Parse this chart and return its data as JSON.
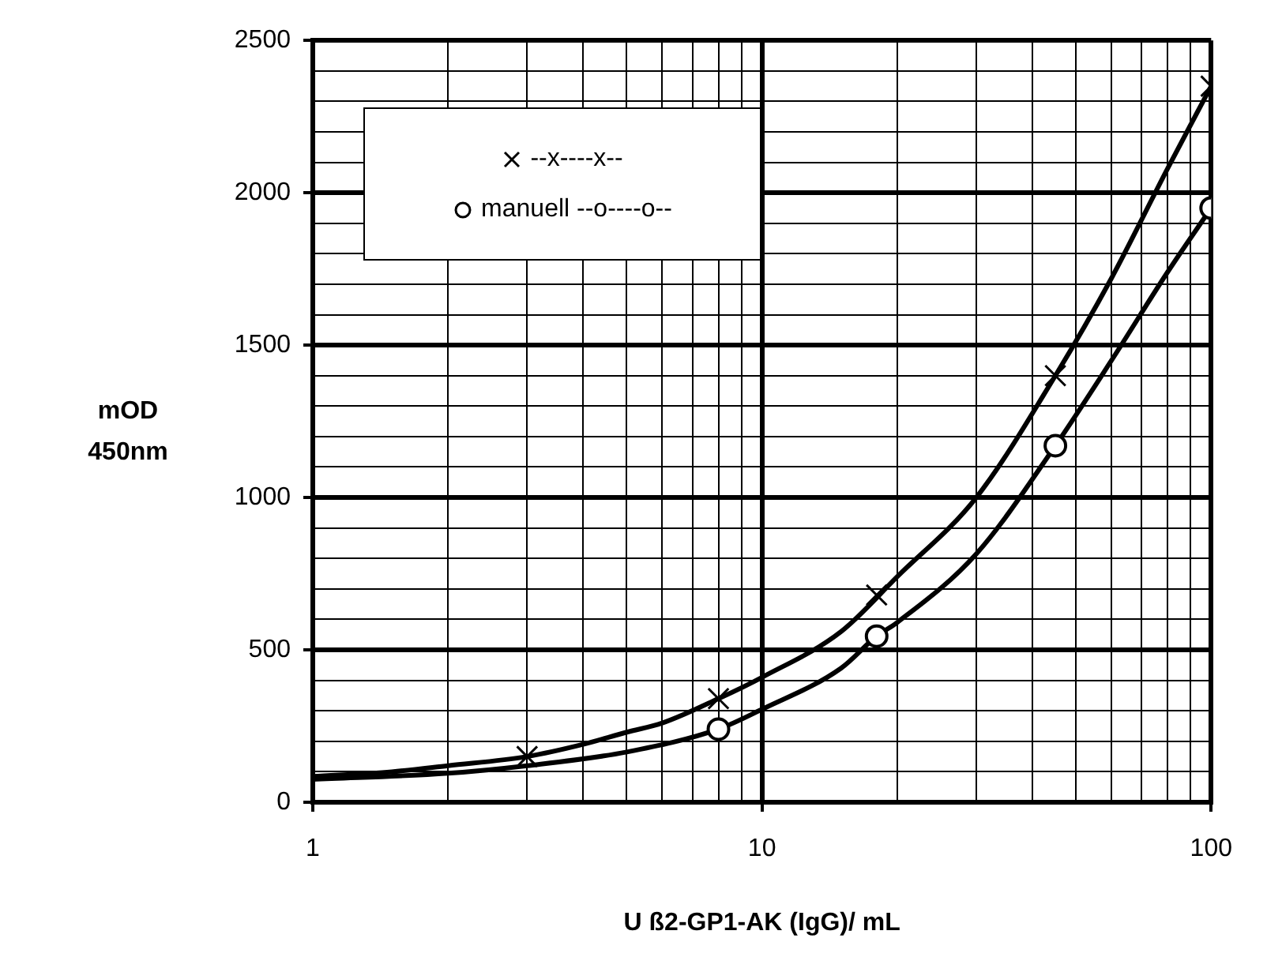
{
  "chart_data": {
    "type": "line",
    "xlabel": "U ß2-GP1-AK (IgG)/ mL",
    "ylabel": "mOD 450nm",
    "log": "x",
    "xlim": [
      1,
      100
    ],
    "xticks": [
      1,
      {
        "value": 2,
        "label": null
      },
      {
        "value": 3,
        "label": null
      },
      {
        "value": 4,
        "label": null
      },
      {
        "value": 5,
        "label": null
      },
      {
        "value": 6,
        "label": null
      },
      {
        "value": 7,
        "label": null
      },
      {
        "value": 8,
        "label": null
      },
      {
        "value": 9,
        "label": null
      },
      10,
      {
        "value": 20,
        "label": null
      },
      {
        "value": 30,
        "label": null
      },
      {
        "value": 40,
        "label": null
      },
      {
        "value": 50,
        "label": null
      },
      {
        "value": 60,
        "label": null
      },
      {
        "value": 70,
        "label": null
      },
      {
        "value": 80,
        "label": null
      },
      {
        "value": 90,
        "label": null
      },
      100
    ],
    "ylim": [
      0,
      2500
    ],
    "yticks": [
      0,
      {
        "value": 100,
        "label": null
      },
      {
        "value": 200,
        "label": null
      },
      {
        "value": 300,
        "label": null
      },
      {
        "value": 400,
        "label": null
      },
      500,
      {
        "value": 600,
        "label": null
      },
      {
        "value": 700,
        "label": null
      },
      {
        "value": 800,
        "label": null
      },
      {
        "value": 900,
        "label": null
      },
      1000,
      {
        "value": 1100,
        "label": null
      },
      {
        "value": 1200,
        "label": null
      },
      {
        "value": 1300,
        "label": null
      },
      {
        "value": 1400,
        "label": null
      },
      1500,
      {
        "value": 1600,
        "label": null
      },
      {
        "value": 1700,
        "label": null
      },
      {
        "value": 1800,
        "label": null
      },
      {
        "value": 1900,
        "label": null
      },
      2000,
      {
        "value": 2100,
        "label": null
      },
      {
        "value": 2200,
        "label": null
      },
      {
        "value": 2300,
        "label": null
      },
      {
        "value": 2400,
        "label": null
      },
      2500
    ],
    "grid": true,
    "legend": "top left",
    "series": [
      {
        "color": "#000000",
        "marker": "none",
        "line_style": "solid",
        "x": [
          1,
          1.5,
          2,
          3,
          4,
          5,
          6,
          8,
          10,
          15,
          20,
          30,
          45,
          60,
          80,
          100
        ],
        "values": [
          85,
          100,
          120,
          150,
          190,
          230,
          260,
          340,
          410,
          560,
          740,
          1000,
          1400,
          1720,
          2080,
          2350
        ]
      },
      {
        "color": "#000000",
        "marker": "none",
        "line_style": "solid",
        "x": [
          1,
          2,
          3,
          5,
          8,
          10,
          15,
          18,
          20,
          30,
          45,
          60,
          80,
          100
        ],
        "values": [
          75,
          95,
          120,
          165,
          240,
          305,
          440,
          545,
          590,
          815,
          1170,
          1450,
          1740,
          1950
        ]
      },
      {
        "type": "scatter",
        "name": "--x----x--",
        "color": "#000000",
        "marker": "cross",
        "x": [
          3,
          8,
          18,
          45,
          100
        ],
        "values": [
          150,
          340,
          680,
          1400,
          2350
        ]
      },
      {
        "type": "scatter",
        "name": "manuell --o----o--",
        "color": "#000000",
        "marker": "circle",
        "x": [
          8,
          18,
          45,
          100
        ],
        "values": [
          240,
          545,
          1170,
          1950
        ]
      }
    ]
  }
}
